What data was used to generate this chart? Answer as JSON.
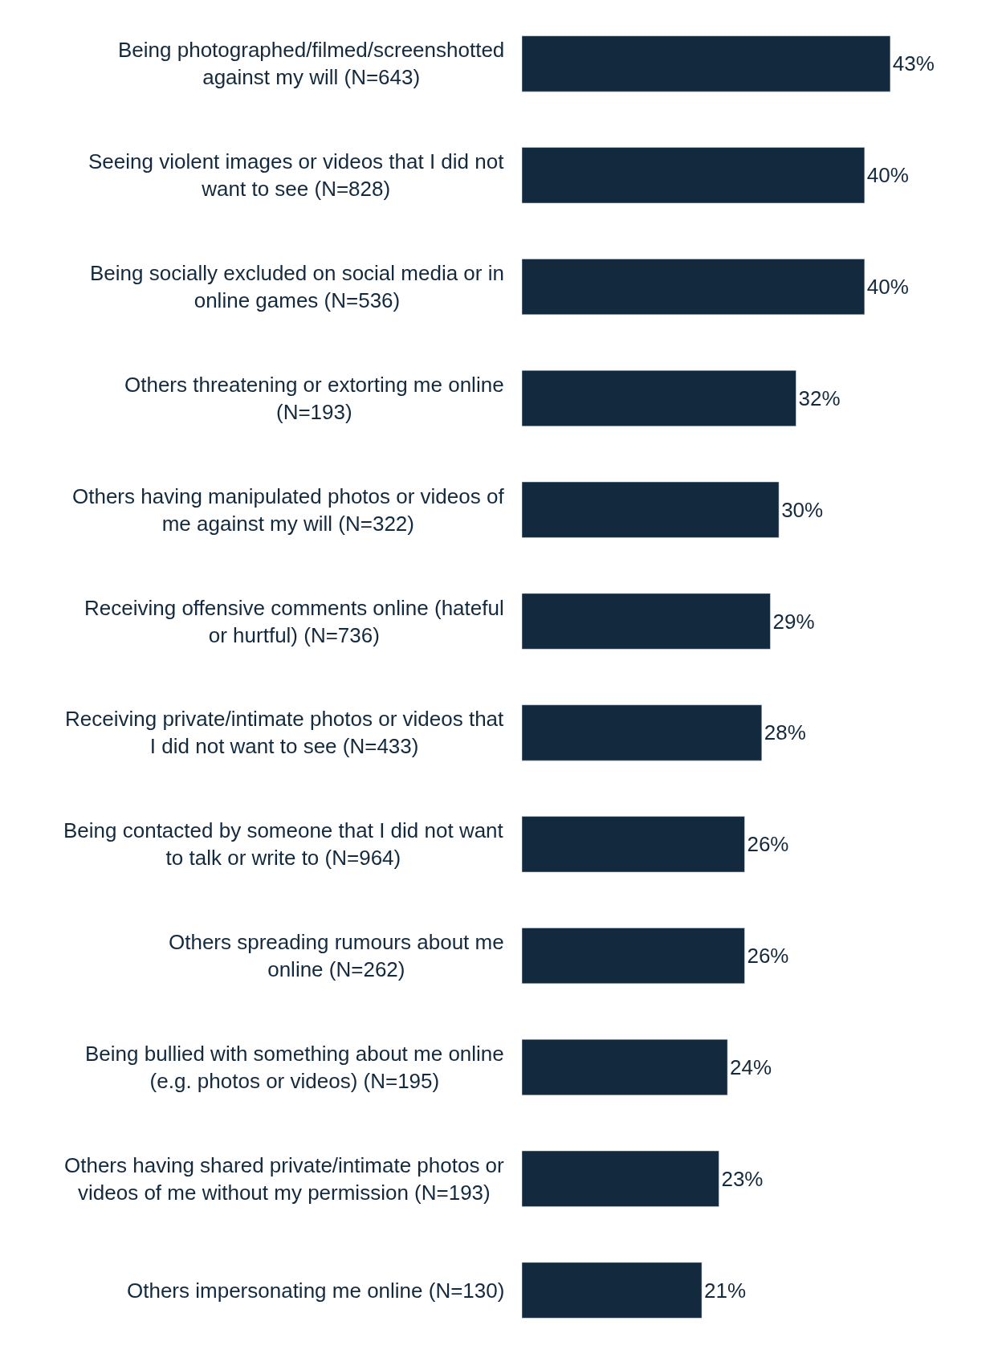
{
  "chart_data": {
    "type": "bar",
    "orientation": "horizontal",
    "data_labels": true,
    "categories": [
      "Being photographed/filmed/screenshotted\nagainst my will (N=643)",
      "Seeing violent images or videos that I did not\nwant to see (N=828)",
      "Being socially excluded on social media or in\nonline games (N=536)",
      "Others threatening or extorting me online\n(N=193)",
      "Others having manipulated photos or videos of\nme against my will (N=322)",
      "Receiving offensive comments online (hateful\nor hurtful) (N=736)",
      "Receiving private/intimate photos or videos that\nI did not want to see (N=433)",
      "Being contacted by someone that I did not want\nto talk or write to (N=964)",
      "Others spreading rumours about me\nonline (N=262)",
      "Being bullied with something about me online\n(e.g. photos or videos) (N=195)",
      "Others having shared private/intimate photos or\nvideos of me without my permission (N=193)",
      "Others impersonating me online (N=130)"
    ],
    "values": [
      43,
      40,
      40,
      32,
      30,
      29,
      28,
      26,
      26,
      24,
      23,
      21
    ],
    "value_labels": [
      "43%",
      "40%",
      "40%",
      "32%",
      "30%",
      "29%",
      "28%",
      "26%",
      "26%",
      "24%",
      "23%",
      "21%"
    ],
    "color": "#13293d"
  }
}
